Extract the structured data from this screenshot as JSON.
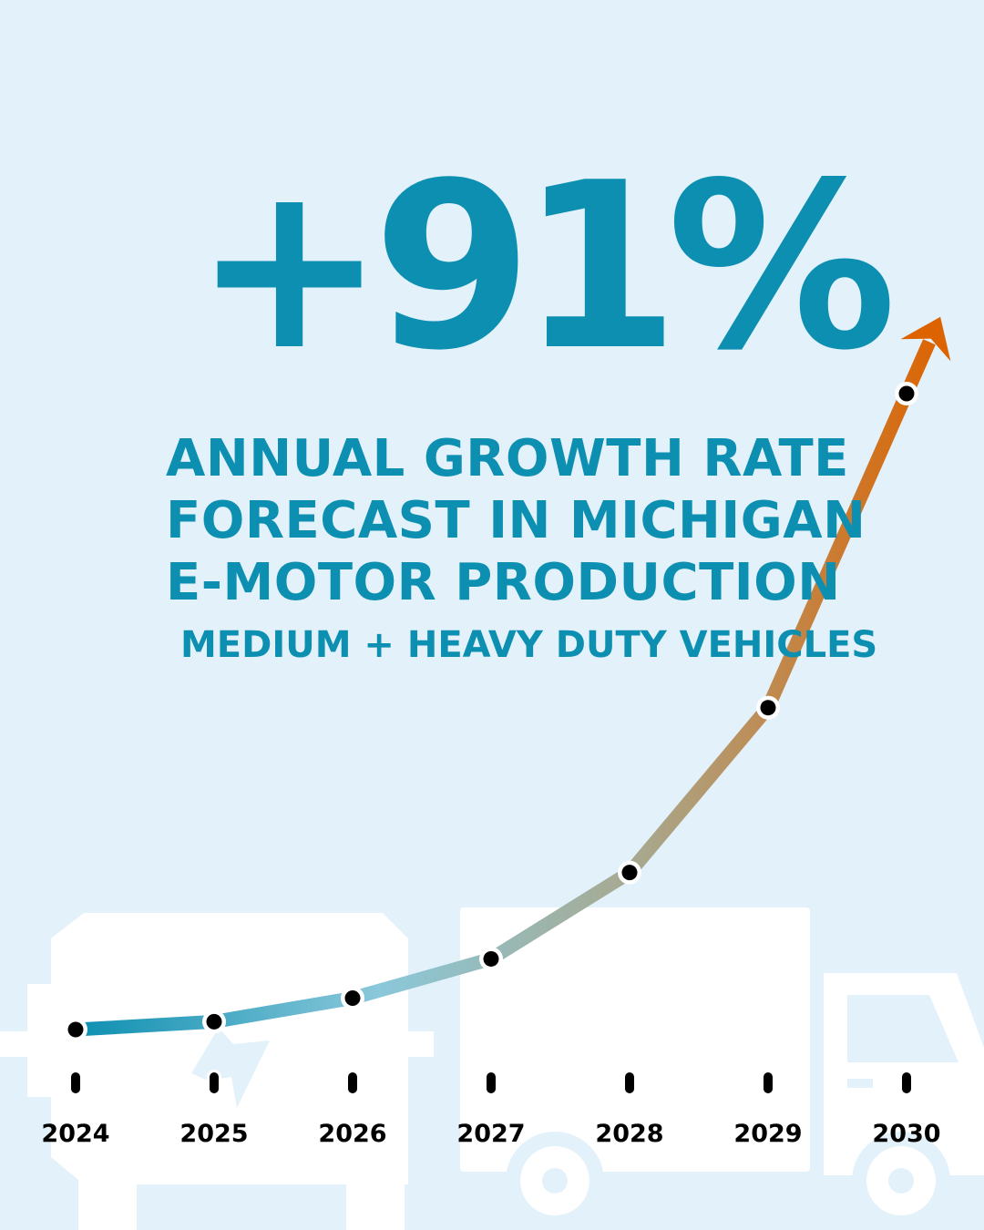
{
  "headline": {
    "stat": "+91%",
    "line1": "ANNUAL GROWTH RATE",
    "line2": "FORECAST IN MICHIGAN",
    "line3": "E-MOTOR PRODUCTION",
    "subline": "MEDIUM + HEAVY DUTY VEHICLES"
  },
  "icons": {
    "background_left": "electric-motor-icon",
    "background_right": "box-truck-icon",
    "trend_arrow": "upward-arrow-icon"
  },
  "colors": {
    "background": "#e3f1fa",
    "accent_teal": "#0d8fb1",
    "accent_orange": "#dd6300",
    "silhouette": "#ffffff",
    "markers": "#000000"
  },
  "chart_data": {
    "type": "line",
    "categories": [
      "2024",
      "2025",
      "2026",
      "2027",
      "2028",
      "2029",
      "2030"
    ],
    "series": [
      {
        "values": [
          1.0,
          1.05,
          1.2,
          1.45,
          2.0,
          3.05,
          5.05
        ]
      }
    ],
    "ylim": [
      0.8,
      5.05
    ],
    "yaxis_visible": false,
    "grid": false,
    "line_gradient": [
      "#0d8fb1",
      "#8ac8da",
      "#a8a88e",
      "#dd6300"
    ],
    "end_arrow": true
  }
}
